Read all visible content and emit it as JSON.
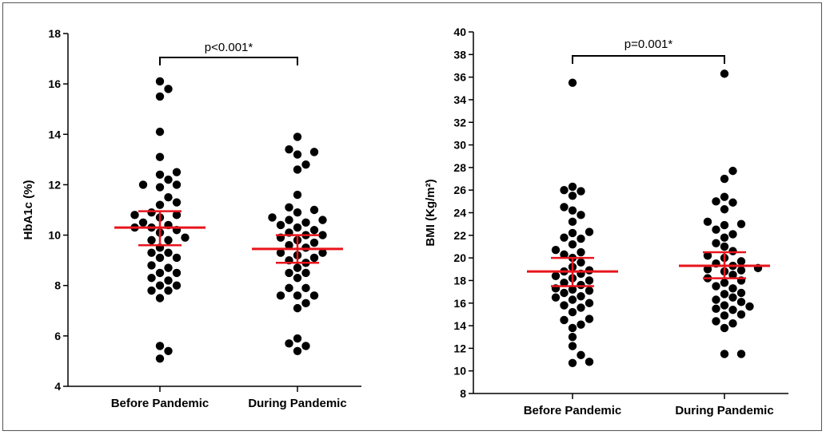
{
  "chart_data": [
    {
      "type": "scatter",
      "ylabel": "HbA1c (%)",
      "ylim": [
        4,
        18
      ],
      "yticks": [
        4,
        6,
        8,
        10,
        12,
        14,
        16,
        18
      ],
      "categories": [
        "Before Pandemic",
        "During Pandemic"
      ],
      "annotation": "p<0.001*",
      "series": [
        {
          "category": "Before Pandemic",
          "mean": 10.3,
          "ci_low": 9.6,
          "ci_high": 10.95,
          "values": [
            5.1,
            5.4,
            5.6,
            7.5,
            7.8,
            7.8,
            8.0,
            8.0,
            8.2,
            8.3,
            8.5,
            8.5,
            8.7,
            8.8,
            9.1,
            9.1,
            9.3,
            9.3,
            9.5,
            9.8,
            9.8,
            9.9,
            10.1,
            10.2,
            10.3,
            10.3,
            10.4,
            10.5,
            10.7,
            10.8,
            10.8,
            10.9,
            11.2,
            11.3,
            11.5,
            11.9,
            12.0,
            12.0,
            12.2,
            12.4,
            12.5,
            13.1,
            14.1,
            15.5,
            15.8,
            16.1
          ]
        },
        {
          "category": "During Pandemic",
          "mean": 9.45,
          "ci_low": 8.9,
          "ci_high": 10.0,
          "values": [
            5.4,
            5.6,
            5.7,
            5.9,
            7.1,
            7.3,
            7.6,
            7.6,
            7.6,
            7.9,
            7.9,
            8.3,
            8.5,
            8.5,
            8.7,
            8.9,
            9.0,
            9.1,
            9.2,
            9.3,
            9.3,
            9.5,
            9.6,
            9.7,
            9.8,
            9.9,
            10.0,
            10.0,
            10.1,
            10.2,
            10.3,
            10.4,
            10.5,
            10.6,
            10.6,
            10.7,
            10.9,
            11.0,
            11.1,
            11.6,
            12.6,
            12.8,
            13.2,
            13.3,
            13.4,
            13.9
          ]
        }
      ]
    },
    {
      "type": "scatter",
      "ylabel": "BMI (Kg/m²)",
      "ylim": [
        8,
        40
      ],
      "yticks": [
        8,
        10,
        12,
        14,
        16,
        18,
        20,
        22,
        24,
        26,
        28,
        30,
        32,
        34,
        36,
        38,
        40
      ],
      "categories": [
        "Before Pandemic",
        "During Pandemic"
      ],
      "annotation": "p=0.001*",
      "series": [
        {
          "category": "Before Pandemic",
          "mean": 18.8,
          "ci_low": 17.5,
          "ci_high": 20.0,
          "values": [
            10.7,
            10.8,
            11.4,
            12.2,
            13.0,
            13.8,
            14.1,
            14.5,
            14.6,
            15.2,
            15.6,
            15.8,
            16.0,
            16.3,
            16.5,
            16.6,
            16.9,
            17.1,
            17.2,
            17.3,
            17.6,
            17.8,
            18.0,
            18.2,
            18.4,
            18.6,
            18.8,
            18.9,
            19.2,
            19.6,
            20.0,
            20.3,
            20.5,
            20.7,
            21.2,
            21.7,
            21.8,
            22.2,
            22.3,
            23.2,
            23.8,
            24.2,
            24.5,
            25.5,
            25.9,
            26.0,
            26.3,
            35.5
          ]
        },
        {
          "category": "During Pandemic",
          "mean": 19.3,
          "ci_low": 18.2,
          "ci_high": 20.5,
          "values": [
            11.5,
            11.5,
            13.8,
            14.2,
            14.4,
            14.9,
            15.0,
            15.4,
            15.5,
            15.7,
            15.8,
            16.1,
            16.3,
            16.5,
            16.8,
            16.9,
            17.3,
            17.5,
            17.8,
            18.0,
            18.2,
            18.5,
            18.8,
            18.9,
            19.0,
            19.1,
            19.3,
            19.5,
            19.7,
            20.0,
            20.2,
            20.6,
            21.0,
            21.3,
            21.8,
            22.1,
            22.5,
            22.9,
            23.0,
            23.2,
            24.3,
            24.9,
            25.0,
            25.4,
            27.0,
            27.7,
            36.3
          ]
        }
      ]
    }
  ]
}
